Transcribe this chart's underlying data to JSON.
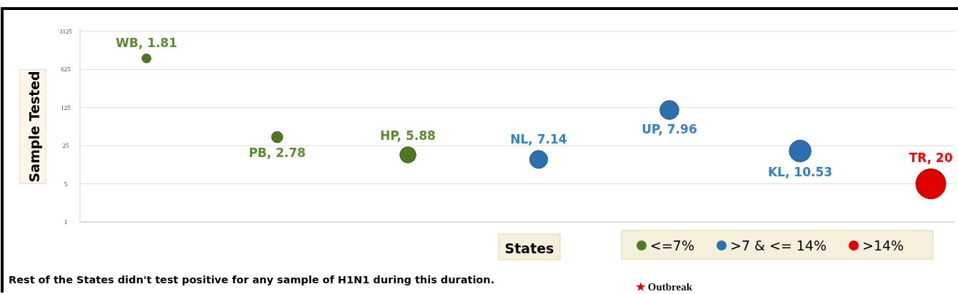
{
  "chart_data": {
    "type": "bubble",
    "ylabel": "Sample Tested",
    "xlabel": "States",
    "categories": [
      null,
      null,
      null,
      null,
      null,
      null,
      null
    ],
    "series": [
      {
        "name": "<=7%",
        "color": "#4e7a25",
        "values": [
          1000,
          36,
          17,
          null,
          null,
          null,
          null
        ],
        "sizes": [
          0.09,
          0.14,
          0.29,
          null,
          null,
          null,
          null
        ]
      },
      {
        "name": ">7 & <= 14%",
        "color": "#2e6fad",
        "values": [
          null,
          null,
          null,
          14,
          113,
          20,
          null
        ],
        "sizes": [
          null,
          null,
          null,
          0.36,
          0.4,
          0.53,
          null
        ]
      },
      {
        "name": ">14%",
        "color": "#e00000",
        "values": [
          null,
          null,
          null,
          null,
          null,
          null,
          5
        ],
        "sizes": [
          null,
          null,
          null,
          null,
          null,
          null,
          1
        ]
      }
    ],
    "log": "y",
    "ylim": [
      1,
      3125
    ],
    "yticks": [
      1,
      5,
      25,
      125,
      625,
      3125
    ],
    "grid": "y",
    "marker": "circle",
    "legend": "bottom right",
    "annotations": [
      {
        "text": "WB, 1.81",
        "y": 1000
      },
      {
        "text": "PB, 2.78",
        "y": 36
      },
      {
        "text": "HP, 5.88",
        "y": 17
      },
      {
        "text": "NL, 7.14",
        "y": 14
      },
      {
        "text": "UP, 7.96",
        "y": 113
      },
      {
        "text": "KL, 10.53",
        "y": 20
      },
      {
        "text": "TR, 20",
        "y": 5
      },
      "Rest of the States didn't test positive for any sample of H1N1 during this duration.",
      "★ Outbreak"
    ]
  }
}
